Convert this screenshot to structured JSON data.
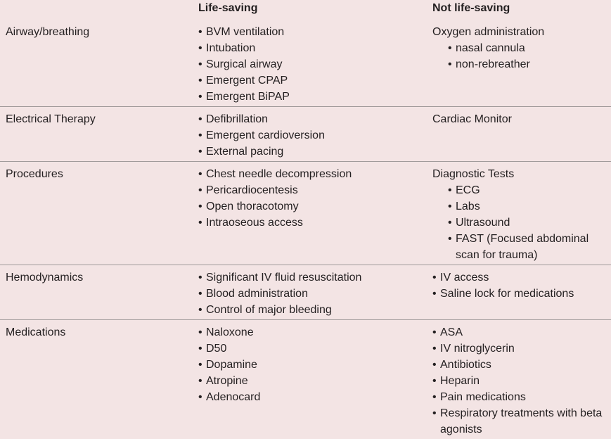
{
  "header": {
    "life_saving": "Life-saving",
    "not_life_saving": "Not life-saving"
  },
  "rows": [
    {
      "category": "Airway/breathing",
      "life_saving": [
        "BVM ventilation",
        "Intubation",
        "Surgical airway",
        "Emergent CPAP",
        "Emergent BiPAP"
      ],
      "not_life_saving": {
        "heading": "Oxygen administration",
        "items": [
          "nasal cannula",
          "non-rebreather"
        ]
      }
    },
    {
      "category": "Electrical Therapy",
      "life_saving": [
        "Defibrillation",
        "Emergent cardioversion",
        "External pacing"
      ],
      "not_life_saving": {
        "heading": "Cardiac Monitor"
      }
    },
    {
      "category": "Procedures",
      "life_saving": [
        "Chest needle decompression",
        "Pericardiocentesis",
        "Open thoracotomy",
        "Intraoseous access"
      ],
      "not_life_saving": {
        "heading": "Diagnostic Tests",
        "items": [
          "ECG",
          "Labs",
          "Ultrasound",
          "FAST (Focused abdominal scan for trauma)"
        ]
      }
    },
    {
      "category": "Hemodynamics",
      "life_saving": [
        "Significant IV fluid resuscitation",
        "Blood administration",
        "Control of major bleeding"
      ],
      "not_life_saving": {
        "items": [
          "IV access",
          "Saline lock for medications"
        ]
      }
    },
    {
      "category": "Medications",
      "life_saving": [
        "Naloxone",
        "D50",
        "Dopamine",
        "Atropine",
        "Adenocard"
      ],
      "not_life_saving": {
        "items": [
          "ASA",
          "IV nitroglycerin",
          "Antibiotics",
          "Heparin",
          "Pain medications",
          "Respiratory treatments with beta agonists"
        ]
      }
    }
  ]
}
